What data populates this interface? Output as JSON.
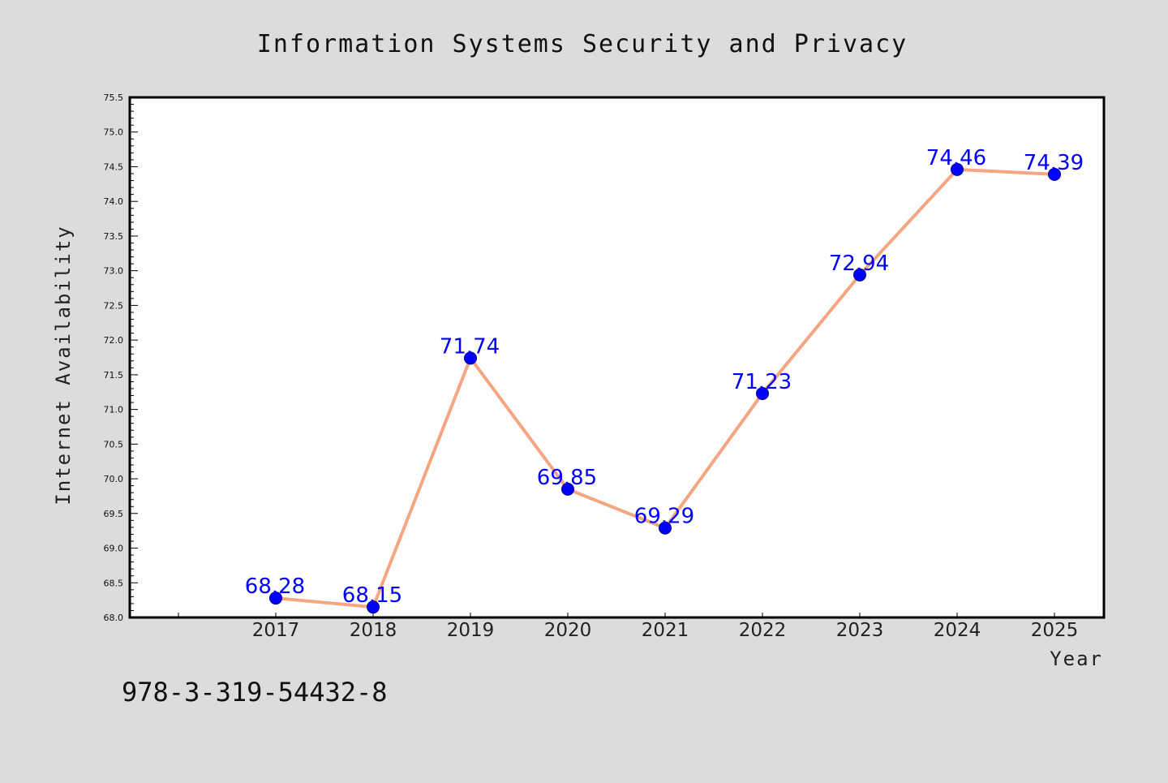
{
  "chart_data": {
    "type": "line",
    "title": "Information Systems Security and Privacy",
    "xlabel": "Year",
    "ylabel": "Internet Availability",
    "categories": [
      "2017",
      "2018",
      "2019",
      "2020",
      "2021",
      "2022",
      "2023",
      "2024",
      "2025"
    ],
    "series": [
      {
        "values": [
          68.28,
          68.15,
          71.74,
          69.85,
          69.29,
          71.23,
          72.94,
          74.46,
          74.39
        ],
        "data_labels": [
          "68.28",
          "68.15",
          "71.74",
          "69.85",
          "69.29",
          "71.23",
          "72.94",
          "74.46",
          "74.39"
        ],
        "line_color": "#f4a582",
        "marker_color": "#0000ff"
      }
    ],
    "ylim": [
      68.0,
      75.5
    ],
    "yticks": [
      "68.0",
      "68.5",
      "69.0",
      "69.5",
      "70.0",
      "70.5",
      "71.0",
      "71.5",
      "72.0",
      "72.5",
      "73.0",
      "73.5",
      "74.0",
      "74.5",
      "75.0",
      "75.5"
    ],
    "grid": false,
    "legend": "none",
    "label_color": "#0000ff",
    "background": "#dcdcdc",
    "plot_background": "#ffffff"
  },
  "footer_text": "978-3-319-54432-8"
}
